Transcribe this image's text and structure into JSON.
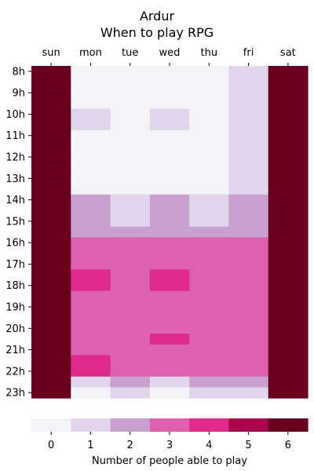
{
  "chart_data": {
    "type": "heatmap",
    "title": "Ardur",
    "subtitle": "When to play RPG",
    "x_categories": [
      "sun",
      "mon",
      "tue",
      "wed",
      "thu",
      "fri",
      "sat"
    ],
    "x_axis_position": "top",
    "y_categories": [
      "8h",
      "9h",
      "10h",
      "11h",
      "12h",
      "13h",
      "14h",
      "15h",
      "16h",
      "17h",
      "18h",
      "19h",
      "20h",
      "21h",
      "22h",
      "23h"
    ],
    "rows_per_hour": 2,
    "values": [
      [
        6,
        0,
        0,
        0,
        0,
        1,
        6
      ],
      [
        6,
        0,
        0,
        0,
        0,
        1,
        6
      ],
      [
        6,
        0,
        0,
        0,
        0,
        1,
        6
      ],
      [
        6,
        0,
        0,
        0,
        0,
        1,
        6
      ],
      [
        6,
        1,
        0,
        1,
        0,
        1,
        6
      ],
      [
        6,
        1,
        0,
        1,
        0,
        1,
        6
      ],
      [
        6,
        0,
        0,
        0,
        0,
        1,
        6
      ],
      [
        6,
        0,
        0,
        0,
        0,
        1,
        6
      ],
      [
        6,
        0,
        0,
        0,
        0,
        1,
        6
      ],
      [
        6,
        0,
        0,
        0,
        0,
        1,
        6
      ],
      [
        6,
        0,
        0,
        0,
        0,
        1,
        6
      ],
      [
        6,
        0,
        0,
        0,
        0,
        1,
        6
      ],
      [
        6,
        2,
        1,
        2,
        1,
        2,
        6
      ],
      [
        6,
        2,
        1,
        2,
        1,
        2,
        6
      ],
      [
        6,
        2,
        1,
        2,
        1,
        2,
        6
      ],
      [
        6,
        2,
        2,
        2,
        2,
        2,
        6
      ],
      [
        6,
        3,
        3,
        3,
        3,
        3,
        6
      ],
      [
        6,
        3,
        3,
        3,
        3,
        3,
        6
      ],
      [
        6,
        3,
        3,
        3,
        3,
        3,
        6
      ],
      [
        6,
        4,
        3,
        4,
        3,
        3,
        6
      ],
      [
        6,
        4,
        3,
        4,
        3,
        3,
        6
      ],
      [
        6,
        3,
        3,
        3,
        3,
        3,
        6
      ],
      [
        6,
        3,
        3,
        3,
        3,
        3,
        6
      ],
      [
        6,
        3,
        3,
        3,
        3,
        3,
        6
      ],
      [
        6,
        3,
        3,
        3,
        3,
        3,
        6
      ],
      [
        6,
        3,
        3,
        4,
        3,
        3,
        6
      ],
      [
        6,
        3,
        3,
        3,
        3,
        3,
        6
      ],
      [
        6,
        4,
        3,
        3,
        3,
        3,
        6
      ],
      [
        6,
        4,
        3,
        3,
        3,
        3,
        6
      ],
      [
        6,
        1,
        2,
        1,
        2,
        2,
        6
      ],
      [
        6,
        0,
        1,
        0,
        1,
        1,
        6
      ]
    ],
    "colorbar": {
      "label": "Number of people able to play",
      "ticks": [
        "0",
        "1",
        "2",
        "3",
        "4",
        "5",
        "6"
      ],
      "colors": [
        "#f5f2f8",
        "#e0d5ea",
        "#c9a1cf",
        "#de60b0",
        "#de2a8a",
        "#a8074e",
        "#67001f"
      ],
      "orientation": "horizontal",
      "position": "bottom"
    },
    "grid": false,
    "legend": "none"
  }
}
